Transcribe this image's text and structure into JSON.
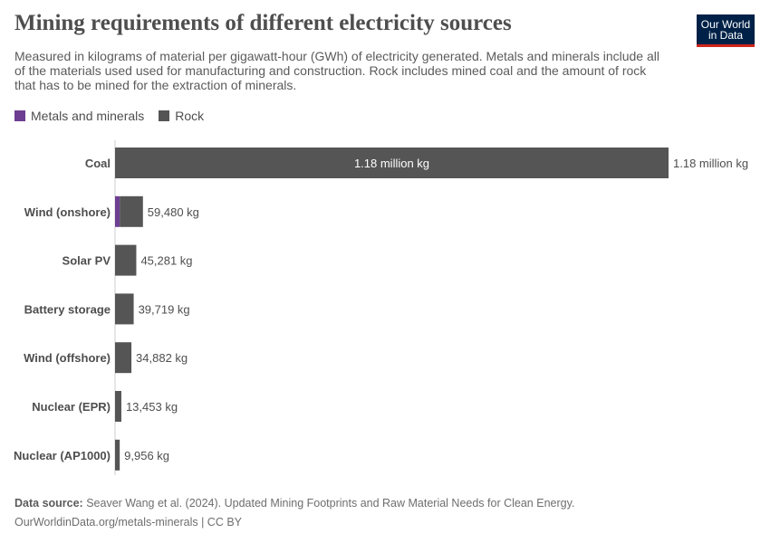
{
  "title": "Mining requirements of different electricity sources",
  "subtitle": "Measured in kilograms of material per gigawatt-hour (GWh) of electricity generated. Metals and minerals include all of the materials used used for manufacturing and construction. Rock includes mined coal and the amount of rock that has to be mined for the extraction of minerals.",
  "logo": {
    "line1": "Our World",
    "line2": "in Data"
  },
  "legend": [
    {
      "name": "Metals and minerals",
      "color": "#6d3e91"
    },
    {
      "name": "Rock",
      "color": "#555555"
    }
  ],
  "chart_data": {
    "type": "bar",
    "orientation": "horizontal",
    "stacked": true,
    "categories": [
      "Coal",
      "Wind (onshore)",
      "Solar PV",
      "Battery storage",
      "Wind (offshore)",
      "Nuclear (EPR)",
      "Nuclear (AP1000)"
    ],
    "series": [
      {
        "name": "Metals and minerals",
        "color": "#6d3e91",
        "values": [
          0,
          10000,
          0,
          0,
          0,
          0,
          0
        ]
      },
      {
        "name": "Rock",
        "color": "#555555",
        "values": [
          1180000,
          49480,
          45281,
          39719,
          34882,
          13453,
          9956
        ]
      }
    ],
    "totals": [
      1180000,
      59480,
      45281,
      39719,
      34882,
      13453,
      9956
    ],
    "total_labels": [
      "1.18 million kg",
      "59,480 kg",
      "45,281 kg",
      "39,719 kg",
      "34,882 kg",
      "13,453 kg",
      "9,956 kg"
    ],
    "inner_label": {
      "category": "Coal",
      "text": "1.18 million kg"
    },
    "xlim": [
      0,
      1180000
    ],
    "grid": false
  },
  "footer": {
    "source_label": "Data source:",
    "source_text": "Seaver Wang et al. (2024). Updated Mining Footprints and Raw Material Needs for Clean Energy.",
    "link": "OurWorldinData.org/metals-minerals | CC BY"
  }
}
